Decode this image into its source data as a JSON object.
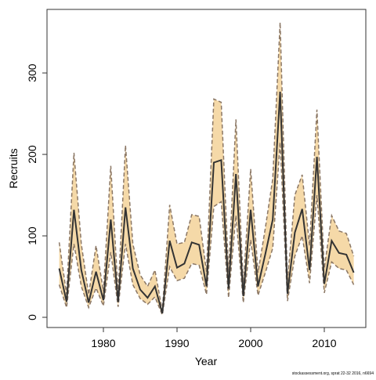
{
  "chart_data": {
    "type": "line",
    "xlabel": "Year",
    "ylabel": "Recruits",
    "footnote": "stockassessment.org, sprat 22-32 2016, n6694",
    "x": [
      1974,
      1975,
      1976,
      1977,
      1978,
      1979,
      1980,
      1981,
      1982,
      1983,
      1984,
      1985,
      1986,
      1987,
      1988,
      1989,
      1990,
      1991,
      1992,
      1993,
      1994,
      1995,
      1996,
      1997,
      1998,
      1999,
      2000,
      2001,
      2002,
      2003,
      2004,
      2005,
      2006,
      2007,
      2008,
      2009,
      2010,
      2011,
      2012,
      2013,
      2014
    ],
    "series": [
      {
        "color": "#333333",
        "values": [
          60,
          19,
          132,
          58,
          18,
          56,
          21,
          120,
          19,
          135,
          60,
          34,
          24,
          38,
          5,
          94,
          61,
          66,
          92,
          89,
          38,
          190,
          193,
          35,
          176,
          26,
          132,
          38,
          78,
          120,
          277,
          29,
          104,
          133,
          58,
          197,
          41,
          94,
          79,
          77,
          55
        ]
      }
    ],
    "upper": [
      92,
      28,
      202,
      90,
      28,
      88,
      32,
      186,
      30,
      211,
      90,
      52,
      38,
      58,
      8,
      138,
      90,
      92,
      126,
      124,
      56,
      268,
      264,
      55,
      243,
      40,
      182,
      55,
      110,
      170,
      362,
      44,
      150,
      175,
      88,
      255,
      60,
      125,
      106,
      103,
      75
    ],
    "lower": [
      40,
      12,
      90,
      38,
      12,
      36,
      14,
      80,
      13,
      90,
      40,
      23,
      16,
      25,
      3,
      62,
      45,
      48,
      66,
      64,
      28,
      136,
      142,
      24,
      125,
      18,
      95,
      27,
      55,
      85,
      215,
      20,
      75,
      100,
      42,
      150,
      30,
      68,
      60,
      58,
      40
    ],
    "band_color": "#f5d9a8",
    "bound_color": "#8b7765",
    "xlim": [
      1972.34,
      2015.64
    ],
    "ylim": [
      -12.5,
      378
    ],
    "xticks": [
      1980,
      1990,
      2000,
      2010
    ],
    "yticks": [
      0,
      100,
      200,
      300
    ]
  }
}
